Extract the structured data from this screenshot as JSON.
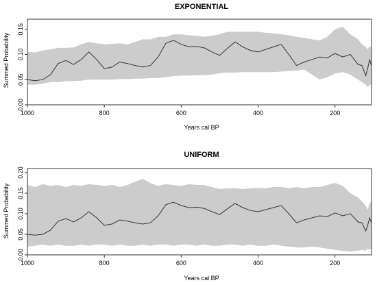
{
  "chart_data": [
    {
      "type": "area",
      "title": "EXPONENTIAL",
      "xlabel": "Years cal BP",
      "ylabel": "Summed Probability",
      "xlim": [
        1000,
        105
      ],
      "ylim": [
        0,
        0.17
      ],
      "xticks": [
        1000,
        800,
        600,
        400,
        200
      ],
      "xtick_labels": [
        "1000",
        "800",
        "600",
        "400",
        "200"
      ],
      "yticks": [
        0,
        0.05,
        0.1,
        0.15
      ],
      "ytick_labels": [
        "0.00",
        "0.05",
        "0.10",
        "0.15"
      ],
      "grid": false,
      "x": [
        1000,
        980,
        960,
        940,
        920,
        900,
        880,
        860,
        840,
        820,
        800,
        780,
        760,
        740,
        720,
        700,
        680,
        660,
        640,
        620,
        600,
        580,
        560,
        540,
        520,
        500,
        480,
        460,
        440,
        420,
        400,
        380,
        360,
        340,
        320,
        300,
        280,
        260,
        240,
        220,
        200,
        180,
        160,
        140,
        130,
        120,
        115,
        110,
        105
      ],
      "series": [
        {
          "role": "upper",
          "values": [
            0.105,
            0.104,
            0.108,
            0.11,
            0.113,
            0.113,
            0.114,
            0.12,
            0.125,
            0.122,
            0.12,
            0.121,
            0.122,
            0.12,
            0.125,
            0.13,
            0.13,
            0.135,
            0.135,
            0.14,
            0.14,
            0.138,
            0.137,
            0.135,
            0.137,
            0.14,
            0.145,
            0.145,
            0.145,
            0.145,
            0.145,
            0.143,
            0.142,
            0.14,
            0.138,
            0.135,
            0.133,
            0.13,
            0.128,
            0.135,
            0.15,
            0.155,
            0.14,
            0.13,
            0.12,
            0.115,
            0.11,
            0.115,
            0.115
          ]
        },
        {
          "role": "lower",
          "values": [
            0.04,
            0.04,
            0.042,
            0.045,
            0.045,
            0.047,
            0.047,
            0.048,
            0.05,
            0.05,
            0.05,
            0.05,
            0.051,
            0.051,
            0.052,
            0.052,
            0.053,
            0.053,
            0.055,
            0.057,
            0.058,
            0.058,
            0.059,
            0.059,
            0.06,
            0.063,
            0.064,
            0.064,
            0.065,
            0.065,
            0.065,
            0.065,
            0.065,
            0.066,
            0.067,
            0.068,
            0.07,
            0.06,
            0.05,
            0.055,
            0.062,
            0.065,
            0.06,
            0.05,
            0.045,
            0.04,
            0.035,
            0.04,
            0.04
          ]
        },
        {
          "role": "observed",
          "values": [
            0.05,
            0.048,
            0.05,
            0.06,
            0.082,
            0.088,
            0.08,
            0.09,
            0.105,
            0.09,
            0.072,
            0.075,
            0.085,
            0.082,
            0.078,
            0.075,
            0.078,
            0.095,
            0.122,
            0.128,
            0.12,
            0.115,
            0.116,
            0.113,
            0.105,
            0.098,
            0.112,
            0.125,
            0.115,
            0.108,
            0.105,
            0.11,
            0.115,
            0.12,
            0.1,
            0.078,
            0.085,
            0.09,
            0.095,
            0.093,
            0.102,
            0.095,
            0.1,
            0.08,
            0.078,
            0.058,
            0.072,
            0.09,
            0.077
          ]
        }
      ]
    },
    {
      "type": "area",
      "title": "UNIFORM",
      "xlabel": "Years cal BP",
      "ylabel": "Summed Probability",
      "xlim": [
        1000,
        105
      ],
      "ylim": [
        0,
        0.21
      ],
      "xticks": [
        1000,
        800,
        600,
        400,
        200
      ],
      "xtick_labels": [
        "1000",
        "800",
        "600",
        "400",
        "200"
      ],
      "yticks": [
        0,
        0.05,
        0.1,
        0.15,
        0.2
      ],
      "ytick_labels": [
        "0.00",
        "0.05",
        "0.10",
        "0.15",
        "0.20"
      ],
      "grid": false,
      "x": [
        1000,
        980,
        960,
        940,
        920,
        900,
        880,
        860,
        840,
        820,
        800,
        780,
        760,
        740,
        720,
        700,
        680,
        660,
        640,
        620,
        600,
        580,
        560,
        540,
        520,
        500,
        480,
        460,
        440,
        420,
        400,
        380,
        360,
        340,
        320,
        300,
        280,
        260,
        240,
        220,
        200,
        180,
        160,
        140,
        130,
        120,
        115,
        110,
        105
      ],
      "series": [
        {
          "role": "upper",
          "values": [
            0.17,
            0.165,
            0.172,
            0.168,
            0.17,
            0.165,
            0.17,
            0.168,
            0.172,
            0.17,
            0.168,
            0.17,
            0.165,
            0.17,
            0.178,
            0.185,
            0.175,
            0.168,
            0.172,
            0.17,
            0.168,
            0.172,
            0.17,
            0.17,
            0.165,
            0.16,
            0.162,
            0.162,
            0.16,
            0.162,
            0.163,
            0.162,
            0.165,
            0.165,
            0.162,
            0.165,
            0.162,
            0.165,
            0.165,
            0.17,
            0.175,
            0.168,
            0.15,
            0.14,
            0.13,
            0.12,
            0.11,
            0.125,
            0.13
          ]
        },
        {
          "role": "lower",
          "values": [
            0.02,
            0.022,
            0.025,
            0.022,
            0.025,
            0.022,
            0.022,
            0.025,
            0.022,
            0.025,
            0.025,
            0.022,
            0.025,
            0.022,
            0.022,
            0.025,
            0.022,
            0.025,
            0.025,
            0.022,
            0.025,
            0.025,
            0.022,
            0.025,
            0.022,
            0.022,
            0.025,
            0.025,
            0.022,
            0.025,
            0.022,
            0.022,
            0.025,
            0.022,
            0.02,
            0.018,
            0.018,
            0.02,
            0.018,
            0.015,
            0.012,
            0.01,
            0.008,
            0.01,
            0.012,
            0.01,
            0.015,
            0.012,
            0.015
          ]
        },
        {
          "role": "observed",
          "values": [
            0.05,
            0.048,
            0.05,
            0.06,
            0.082,
            0.088,
            0.08,
            0.09,
            0.105,
            0.09,
            0.072,
            0.075,
            0.085,
            0.082,
            0.078,
            0.075,
            0.078,
            0.095,
            0.122,
            0.128,
            0.12,
            0.115,
            0.116,
            0.113,
            0.105,
            0.098,
            0.112,
            0.125,
            0.115,
            0.108,
            0.105,
            0.11,
            0.115,
            0.12,
            0.1,
            0.078,
            0.085,
            0.09,
            0.095,
            0.093,
            0.102,
            0.095,
            0.1,
            0.08,
            0.078,
            0.058,
            0.072,
            0.09,
            0.077
          ]
        }
      ]
    }
  ],
  "colors": {
    "band": "#cccccc",
    "curve": "#333333",
    "axis": "#333333"
  }
}
